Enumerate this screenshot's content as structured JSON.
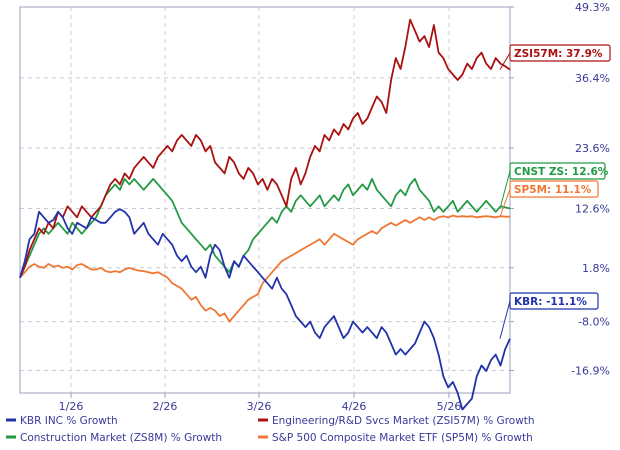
{
  "chart_data": {
    "type": "line",
    "x_ticks": [
      "1/26",
      "2/26",
      "3/26",
      "4/26",
      "5/26"
    ],
    "y_ticks": [
      "49.3%",
      "36.4%",
      "23.6%",
      "12.6%",
      "1.8%",
      "-8.0%",
      "-16.9%"
    ],
    "ylim": [
      -21.0,
      49.3
    ],
    "grid": true,
    "legend_placement": "bottom",
    "series": [
      {
        "name": "KBR INC % Growth",
        "end_label": "KBR: -11.1%",
        "color": "#2233aa",
        "values": [
          0,
          3,
          7,
          8,
          12,
          11,
          10,
          10.5,
          12,
          11,
          9,
          8,
          10,
          9.5,
          9,
          11,
          10.5,
          10,
          10,
          11,
          12,
          12.5,
          12,
          11,
          8,
          9,
          10,
          8,
          7,
          6,
          8,
          7,
          6,
          4,
          3,
          4,
          2,
          1,
          2,
          0,
          4,
          6,
          5,
          2,
          0,
          3,
          2,
          4,
          3,
          2,
          1,
          0,
          -1,
          -2,
          0,
          -2,
          -3,
          -5,
          -7,
          -8,
          -9,
          -8,
          -10,
          -11,
          -9,
          -8,
          -7,
          -9,
          -11,
          -10,
          -8,
          -9,
          -10,
          -9,
          -10,
          -11,
          -9,
          -10,
          -12,
          -14,
          -13,
          -14,
          -13,
          -12,
          -10,
          -8,
          -9,
          -11,
          -14,
          -18,
          -20,
          -19,
          -21,
          -24,
          -23,
          -22,
          -18,
          -16,
          -17,
          -15,
          -14,
          -16,
          -13,
          -11.1
        ]
      },
      {
        "name": "Engineering/R&D Svcs Market (ZSI57M) % Growth",
        "end_label": "ZSI57M: 37.9%",
        "color": "#aa1111",
        "values": [
          0,
          2,
          5,
          7,
          9,
          8,
          10,
          9,
          12,
          11,
          13,
          12,
          11,
          13,
          12,
          11,
          12,
          13,
          15,
          17,
          18,
          17,
          19,
          18,
          20,
          21,
          22,
          21,
          20,
          22,
          23,
          24,
          23,
          25,
          26,
          25,
          24,
          26,
          25,
          23,
          24,
          21,
          20,
          19,
          22,
          21,
          19,
          18,
          20,
          19,
          17,
          18,
          16,
          18,
          17,
          15,
          13,
          18,
          20,
          17,
          19,
          22,
          24,
          23,
          26,
          25,
          27,
          26,
          28,
          27,
          29,
          30,
          28,
          29,
          31,
          33,
          32,
          30,
          36,
          40,
          38,
          42,
          47,
          45,
          43,
          44,
          42,
          46,
          41,
          40,
          38,
          37,
          36,
          37,
          39,
          38,
          40,
          41,
          39,
          38,
          40,
          39,
          38.5,
          37.9
        ]
      },
      {
        "name": "Construction Market (ZS8M) % Growth",
        "end_label": "CNST ZS: 12.6%",
        "color": "#229944",
        "values": [
          0,
          2,
          4,
          6,
          8,
          9,
          8,
          9,
          10,
          9,
          8,
          10,
          9,
          8,
          9,
          10,
          11,
          13,
          15,
          16,
          17,
          16,
          18,
          17,
          18,
          17,
          16,
          17,
          18,
          17,
          16,
          15,
          14,
          12,
          10,
          9,
          8,
          7,
          6,
          5,
          6,
          4,
          3,
          2,
          1,
          3,
          2,
          4,
          5,
          7,
          8,
          9,
          10,
          11,
          10,
          12,
          13,
          12,
          14,
          15,
          14,
          13,
          14,
          15,
          13,
          14,
          15,
          14,
          16,
          17,
          15,
          16,
          17,
          16,
          18,
          16,
          15,
          14,
          13,
          15,
          16,
          15,
          17,
          18,
          16,
          15,
          14,
          12,
          13,
          12,
          13,
          14,
          12,
          13,
          14,
          13,
          12,
          13,
          14,
          13,
          12,
          13,
          12.8,
          12.6
        ]
      },
      {
        "name": "S&P 500 Composite Market ETF (SP5M) % Growth",
        "end_label": "SP5M: 11.1%",
        "color": "#ee7733",
        "values": [
          0,
          1,
          2,
          2.5,
          2,
          1.8,
          2.5,
          2,
          2.2,
          1.8,
          2,
          1.5,
          2.3,
          2.5,
          2,
          1.5,
          1.5,
          1.8,
          1.2,
          1,
          1.2,
          1,
          1.5,
          1.8,
          1.5,
          1.3,
          1.2,
          1,
          0.8,
          1,
          0.5,
          0,
          -1,
          -1.5,
          -2,
          -3,
          -4,
          -3.5,
          -5,
          -6,
          -5.5,
          -6,
          -7,
          -6.5,
          -8,
          -7,
          -6,
          -5,
          -4,
          -3.5,
          -3,
          -1,
          0,
          1,
          2,
          3,
          3.5,
          4,
          4.5,
          5,
          5.5,
          6,
          6.5,
          7,
          6,
          7,
          8,
          7.5,
          7,
          6.5,
          6,
          7,
          7.5,
          8,
          8.5,
          8,
          9,
          9.5,
          10,
          9.5,
          10,
          10.5,
          10,
          10.5,
          11,
          10.5,
          11,
          10.5,
          11,
          11.2,
          11,
          11.3,
          11.1,
          11.2,
          11.1,
          11.2,
          11,
          11.1,
          11.2,
          11.1,
          11,
          11.2,
          11.1,
          11.1
        ]
      }
    ]
  }
}
